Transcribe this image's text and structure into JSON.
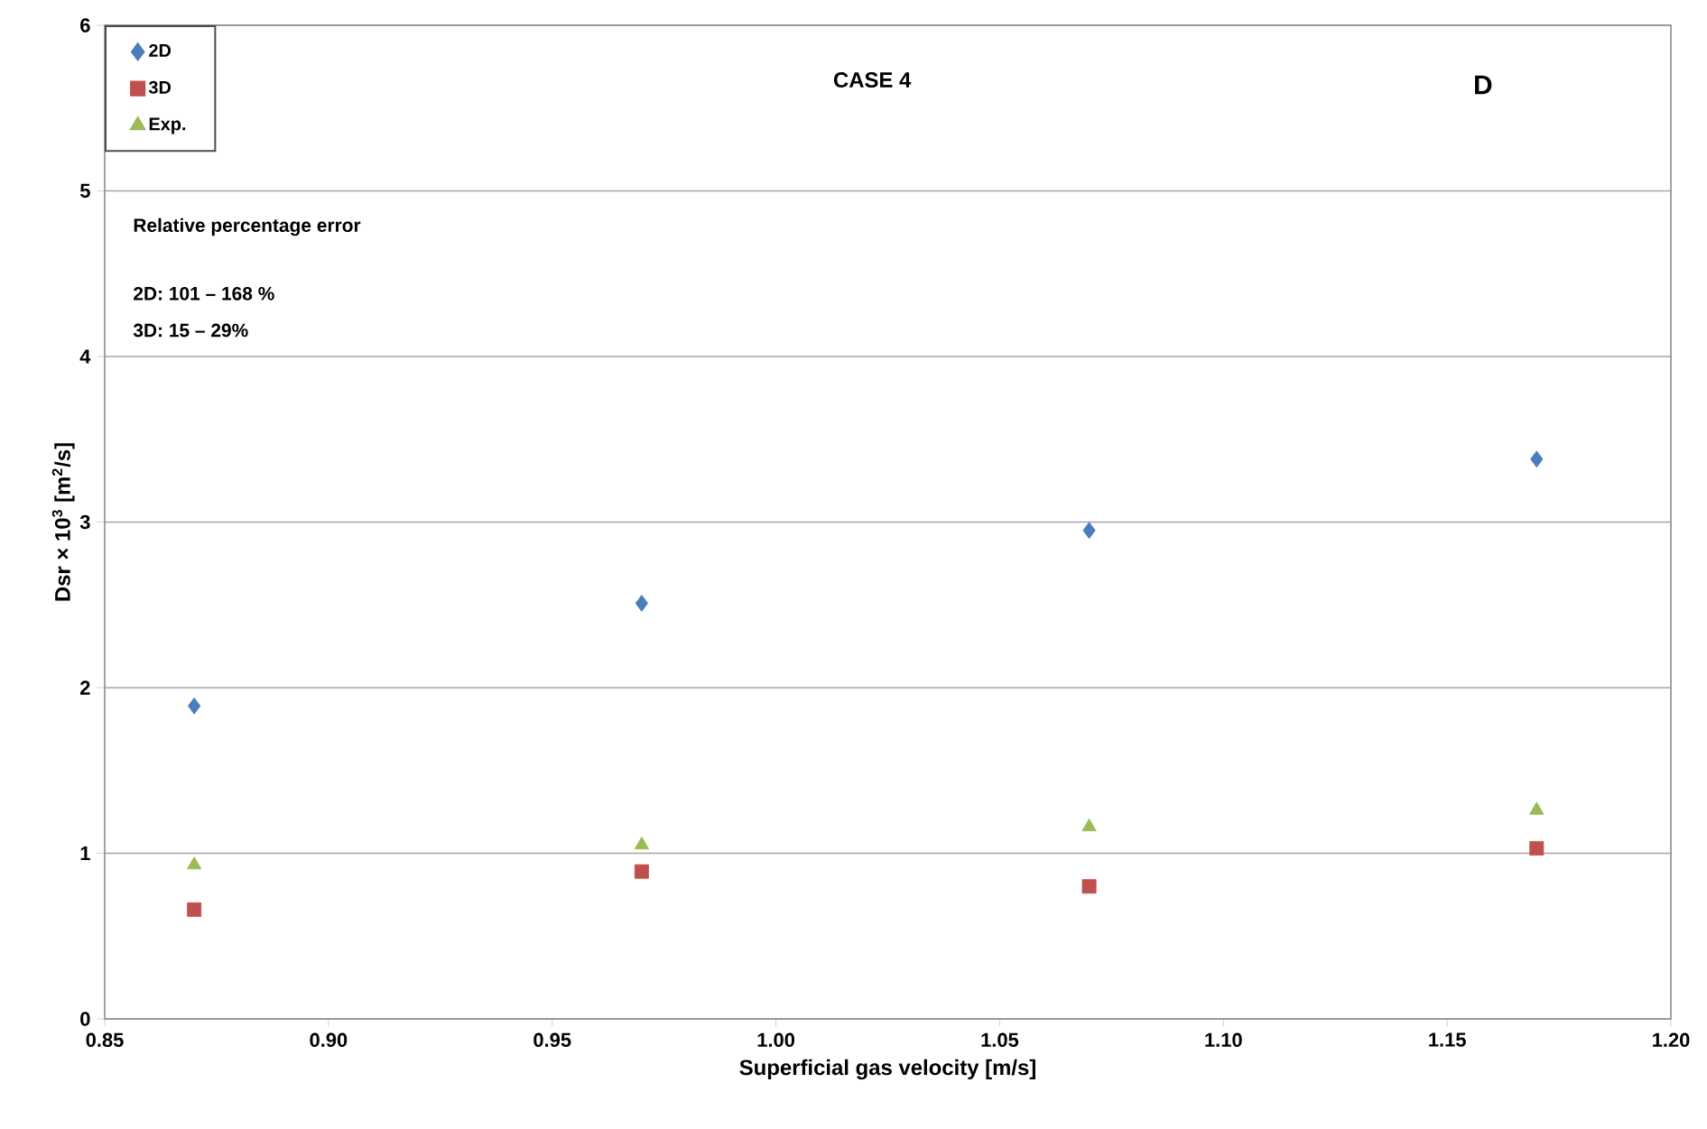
{
  "chart_data": {
    "type": "scatter",
    "title": "CASE 4",
    "xlabel": "Superficial gas velocity [m/s]",
    "ylabel": "Dsr × 10$^{3}$ [m$^{2}$/s]",
    "x": [
      0.87,
      0.97,
      1.07,
      1.17
    ],
    "series": [
      {
        "name": "2D",
        "color": "#4a7ebb",
        "marker": "diamond",
        "values": [
          1.89,
          2.51,
          2.95,
          3.38
        ]
      },
      {
        "name": "3D",
        "color": "#c0504d",
        "marker": "square",
        "values": [
          0.66,
          0.89,
          0.8,
          1.03
        ]
      },
      {
        "name": "Exp.",
        "color": "#9bbb59",
        "marker": "triangle",
        "values": [
          0.93,
          1.05,
          1.16,
          1.26
        ]
      }
    ],
    "xlim": [
      0.85,
      1.2
    ],
    "xticks": [
      {
        "value": 0.85,
        "label": "0.85"
      },
      {
        "value": 0.9,
        "label": "0.90"
      },
      {
        "value": 0.95,
        "label": "0.95"
      },
      {
        "value": 1.0,
        "label": "1.00"
      },
      {
        "value": 1.05,
        "label": "1.05"
      },
      {
        "value": 1.1,
        "label": "1.10"
      },
      {
        "value": 1.15,
        "label": "1.15"
      },
      {
        "value": 1.2,
        "label": "1.20"
      }
    ],
    "ylim": [
      0,
      6
    ],
    "yticks": [
      0,
      1,
      2,
      3,
      4,
      5,
      6
    ],
    "grid": "y",
    "legend": "top left",
    "annotations": [
      "D",
      "Relative percentage error",
      "2D:  101 – 168 %",
      "3D:   15 – 29%"
    ]
  }
}
